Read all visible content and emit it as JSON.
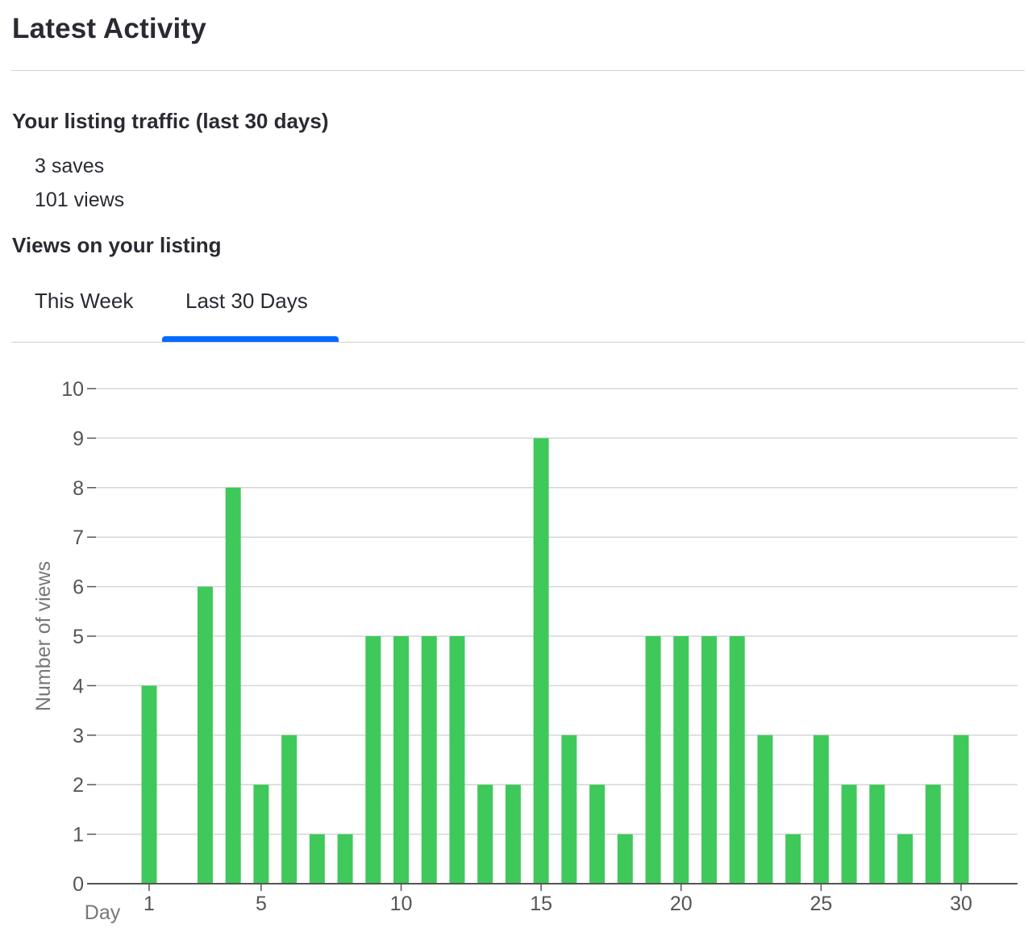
{
  "page": {
    "title": "Latest Activity",
    "traffic_heading": "Your listing traffic (last 30 days)",
    "saves": "3 saves",
    "views": "101 views",
    "views_heading": "Views on your listing",
    "tabs": [
      {
        "label": "This Week",
        "active": false
      },
      {
        "label": "Last 30 Days",
        "active": true
      }
    ]
  },
  "colors": {
    "bar": "#3ec95a",
    "tab_active": "#006aff",
    "grid": "#d6d6d6",
    "axis": "#555555",
    "tick_label": "#555555"
  },
  "chart_data": {
    "type": "bar",
    "xlabel": "Day",
    "ylabel": "Number of views",
    "ylim": [
      0,
      10
    ],
    "yticks": [
      0,
      1,
      2,
      3,
      4,
      5,
      6,
      7,
      8,
      9,
      10
    ],
    "xticks": [
      1,
      5,
      10,
      15,
      20,
      25,
      30
    ],
    "xlim": [
      0.5,
      32
    ],
    "grid": true,
    "legend": "none",
    "days": [
      1,
      2,
      3,
      4,
      5,
      6,
      7,
      8,
      9,
      10,
      11,
      12,
      13,
      14,
      15,
      16,
      17,
      18,
      19,
      20,
      21,
      22,
      23,
      24,
      25,
      26,
      27,
      28,
      29,
      30
    ],
    "values": [
      4,
      0,
      6,
      8,
      2,
      3,
      1,
      1,
      5,
      5,
      5,
      5,
      2,
      2,
      9,
      3,
      2,
      1,
      5,
      5,
      5,
      5,
      3,
      1,
      3,
      2,
      2,
      1,
      2,
      3
    ]
  }
}
